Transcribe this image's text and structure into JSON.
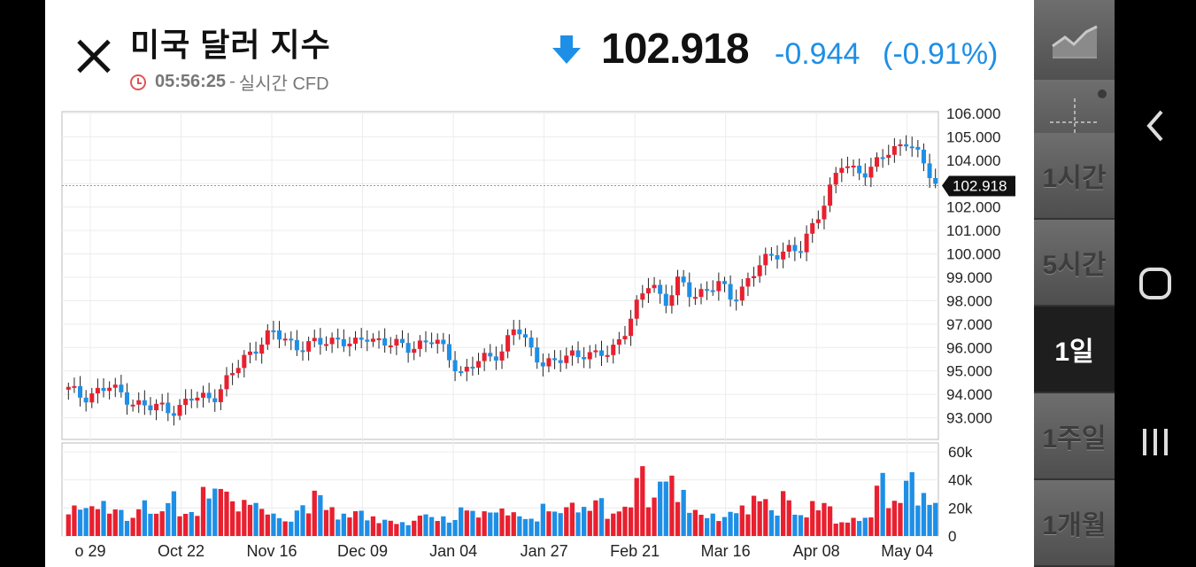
{
  "header": {
    "title": "미국 달러 지수",
    "time": "05:56:25",
    "separator": "-",
    "source": "실시간 CFD",
    "price": "102.918",
    "change": "-0.944",
    "change_pct": "(-0.91%)",
    "direction_icon": "down-arrow-icon",
    "colors": {
      "down": "#1e8fe6",
      "up": "#e8202f"
    }
  },
  "sidebar": {
    "chart_type_icon": "line-chart-icon",
    "crosshair_icon": "crosshair-icon",
    "intervals": [
      "1시간",
      "5시간",
      "1일",
      "1주일",
      "1개월"
    ],
    "active_interval": "1일"
  },
  "navbar": {
    "icons": [
      "back-icon",
      "home-icon",
      "recent-apps-icon"
    ]
  },
  "chart_data": {
    "type": "candlestick",
    "current_price_label": "102.918",
    "price_axis_ticks": [
      "106.000",
      "105.000",
      "104.000",
      "103.000",
      "102.000",
      "101.000",
      "100.000",
      "99.000",
      "98.000",
      "97.000",
      "96.000",
      "95.000",
      "94.000",
      "93.000"
    ],
    "price_ylim": [
      92.0,
      106.0
    ],
    "volume_axis_ticks": [
      "60k",
      "40k",
      "20k",
      "0"
    ],
    "volume_ylim": [
      0,
      60000
    ],
    "x_ticks": [
      "o 29",
      "Oct 22",
      "Nov 16",
      "Dec 09",
      "Jan 04",
      "Jan 27",
      "Feb 21",
      "Mar 16",
      "Apr 08",
      "May 04"
    ],
    "grid": true,
    "colors": {
      "up": "#e8202f",
      "down": "#1e8fe6"
    },
    "price_path": [
      94.2,
      93.9,
      94.1,
      94.3,
      94.0,
      93.6,
      93.4,
      93.5,
      93.3,
      93.8,
      93.9,
      94.0,
      94.8,
      95.6,
      96.1,
      96.6,
      96.4,
      96.0,
      96.1,
      96.3,
      96.4,
      96.0,
      96.5,
      96.3,
      96.1,
      96.0,
      96.2,
      96.3,
      95.7,
      94.9,
      95.3,
      95.6,
      95.9,
      96.9,
      96.0,
      95.4,
      95.3,
      95.7,
      95.8,
      95.6,
      95.8,
      96.7,
      97.8,
      98.9,
      97.9,
      98.8,
      98.2,
      98.5,
      98.7,
      98.0,
      98.8,
      99.5,
      99.9,
      100.3,
      100.1,
      101.2,
      102.6,
      103.8,
      103.5,
      103.6,
      104.1,
      104.4,
      105.0,
      103.9,
      102.9
    ],
    "volume_k": [
      22,
      22,
      25,
      20,
      13,
      26,
      18,
      32,
      17,
      18,
      35,
      37,
      25,
      26,
      20,
      16,
      11,
      22,
      33,
      21,
      16,
      19,
      14,
      12,
      10,
      11,
      17,
      14,
      12,
      22,
      18,
      19,
      20,
      17,
      13,
      23,
      18,
      24,
      21,
      28,
      16,
      22,
      50,
      28,
      44,
      33,
      20,
      16,
      14,
      19,
      22,
      29,
      19,
      32,
      16,
      25,
      24,
      10,
      13,
      14,
      45,
      26,
      46,
      31,
      26
    ]
  }
}
